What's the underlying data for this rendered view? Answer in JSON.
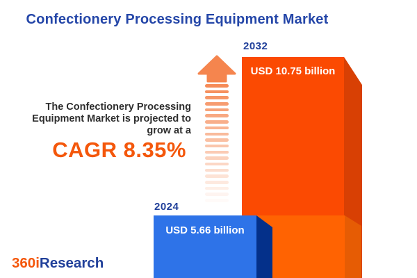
{
  "title": "Confectionery Processing Equipment Market",
  "description": {
    "lines": [
      "The Confectionery Processing",
      "Equipment Market is projected to",
      "grow at a"
    ],
    "cagr_label": "CAGR 8.35%"
  },
  "chart_data": {
    "type": "bar",
    "orientation": "vertical",
    "title": "Confectionery Processing Equipment Market",
    "categories": [
      "2024",
      "2032"
    ],
    "values": [
      5.66,
      10.75
    ],
    "unit": "USD billion",
    "value_labels": [
      "USD 5.66 billion",
      "USD 10.75 billion"
    ],
    "cagr_percent": 8.35,
    "legend": "none",
    "colors": {
      "bar_2024_front": "#2E73E8",
      "bar_2024_side": "#04308A",
      "bar_2032_front": "#FB4A02",
      "bar_2032_side": "#D84004",
      "bar_2032_base_front": "#FF6302",
      "bar_2032_base_side": "#E65C04"
    }
  },
  "branding": {
    "logo_part1": "360i",
    "logo_part2": "Research"
  },
  "colors": {
    "title_navy": "#2446A8",
    "year_label_navy": "#21409A",
    "accent_orange": "#F4570B",
    "body_text": "#2E2E2E",
    "arrow_orange": "#F5854E",
    "background": "#FFFFFF"
  }
}
